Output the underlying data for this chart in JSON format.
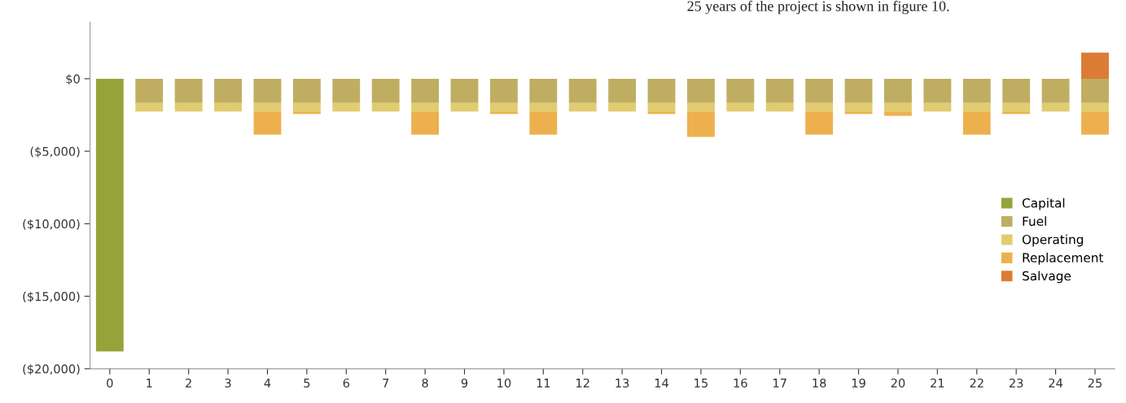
{
  "chart_data": {
    "type": "bar",
    "stacked": true,
    "categories": [
      "0",
      "1",
      "2",
      "3",
      "4",
      "5",
      "6",
      "7",
      "8",
      "9",
      "10",
      "11",
      "12",
      "13",
      "14",
      "15",
      "16",
      "17",
      "18",
      "19",
      "20",
      "21",
      "22",
      "23",
      "24",
      "25"
    ],
    "series": [
      {
        "name": "Capital",
        "color": "#96a33a",
        "values": [
          -18800,
          null,
          null,
          null,
          null,
          null,
          null,
          null,
          null,
          null,
          null,
          null,
          null,
          null,
          null,
          null,
          null,
          null,
          null,
          null,
          null,
          null,
          null,
          null,
          null,
          null
        ]
      },
      {
        "name": "Fuel",
        "color": "#bfae62",
        "values": [
          null,
          -1680,
          -1680,
          -1680,
          -1680,
          -1680,
          -1680,
          -1680,
          -1680,
          -1680,
          -1680,
          -1680,
          -1680,
          -1680,
          -1680,
          -1680,
          -1680,
          -1680,
          -1680,
          -1680,
          -1680,
          -1680,
          -1680,
          -1680,
          -1680,
          -1680
        ]
      },
      {
        "name": "Operating",
        "color": "#e2cc6f",
        "values": [
          null,
          -580,
          -580,
          -580,
          -580,
          -580,
          -580,
          -580,
          -580,
          -580,
          -580,
          -580,
          -580,
          -580,
          -580,
          -580,
          -580,
          -580,
          -580,
          -580,
          -580,
          -580,
          -580,
          -580,
          -580,
          -580
        ]
      },
      {
        "name": "Replacement",
        "color": "#ecb14e",
        "values": [
          null,
          null,
          null,
          null,
          -1600,
          -170,
          null,
          null,
          -1600,
          null,
          -170,
          -1600,
          null,
          null,
          -170,
          -1750,
          null,
          null,
          -1600,
          -170,
          -300,
          null,
          -1600,
          -170,
          null,
          -1600
        ]
      },
      {
        "name": "Salvage",
        "color": "#dc7c35",
        "values": [
          null,
          null,
          null,
          null,
          null,
          null,
          null,
          null,
          null,
          null,
          null,
          null,
          null,
          null,
          null,
          null,
          null,
          null,
          null,
          null,
          null,
          null,
          null,
          null,
          null,
          1800
        ]
      }
    ],
    "ylim": [
      -20000,
      3900
    ],
    "yticks": [
      {
        "value": 0,
        "label": "$0"
      },
      {
        "value": -5000,
        "label": "($5,000)"
      },
      {
        "value": -10000,
        "label": "($10,000)"
      },
      {
        "value": -15000,
        "label": "($15,000)"
      },
      {
        "value": -20000,
        "label": "($20,000)"
      }
    ],
    "grid": false,
    "legend": "right",
    "annotations": [
      "25 years of the project is shown in figure 10."
    ]
  }
}
